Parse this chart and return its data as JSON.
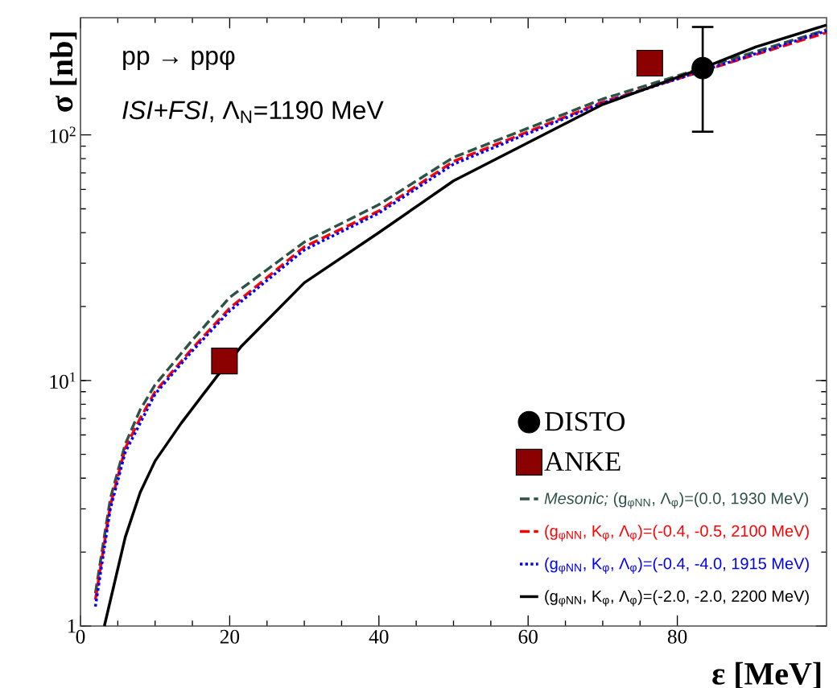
{
  "chart_data": {
    "type": "line",
    "xlabel": "ε [MeV]",
    "ylabel": "σ [nb]",
    "annotations": [
      "pp → ppφ",
      "*ISI+FSI*, Λ$_{N}$=1190 MeV"
    ],
    "xlim": [
      0,
      100
    ],
    "xticks": [
      0,
      20,
      40,
      60,
      80
    ],
    "ylim": [
      1,
      300
    ],
    "log": "y",
    "yticks": [
      1,
      {
        "value": 10,
        "label": "10$^{1}$"
      },
      {
        "value": 100,
        "label": "10$^{2}$"
      }
    ],
    "grid": false,
    "legend": "bottom right",
    "marker": "none",
    "series": [
      {
        "name": "DISTO",
        "type": "scatter",
        "marker": "circle",
        "color": "#000000",
        "x": [
          83.4
        ],
        "values": [
          187
        ],
        "errors": [
          [
            103,
            275
          ]
        ]
      },
      {
        "name": "ANKE",
        "type": "scatter",
        "marker": "square",
        "color": "#8b0000",
        "x": [
          19.3,
          76.3
        ],
        "values": [
          12.0,
          196
        ]
      },
      {
        "name": "*Mesonic;* (g$_{φNN}$, Λ$_{φ}$)=(0.0, 1930 MeV)",
        "line_style": "dashed",
        "color": "#2e5248",
        "x": [
          2,
          4,
          6,
          8,
          10,
          15,
          20,
          30,
          40,
          50,
          70,
          100
        ],
        "values": [
          1.36,
          3.3,
          5.5,
          7.6,
          9.6,
          14.6,
          21.8,
          36.6,
          52,
          81,
          140,
          268
        ]
      },
      {
        "name": "(g$_{φNN}$, K$_{φ}$, Λ$_{φ}$)=(-0.4, -0.5, 2100 MeV)",
        "line_style": "dashed",
        "color": "#ff0000",
        "x": [
          2,
          4,
          6,
          8,
          10,
          15,
          20,
          30,
          40,
          50,
          70,
          100
        ],
        "values": [
          1.28,
          3.1,
          5.3,
          7.0,
          9.0,
          13.5,
          19.7,
          35,
          49,
          78,
          136,
          261
        ]
      },
      {
        "name": "(g$_{φNN}$, K$_{φ}$, Λ$_{φ}$)=(-0.4, -4.0, 1915 MeV)",
        "line_style": "dotted",
        "color": "#0000ff",
        "x": [
          2,
          4,
          6,
          8,
          10,
          15,
          20,
          30,
          40,
          50,
          70,
          100
        ],
        "values": [
          1.2,
          3.0,
          5.1,
          6.7,
          8.8,
          13.2,
          19.2,
          34,
          48,
          76,
          135,
          265
        ]
      },
      {
        "name": "(g$_{φNN}$, K$_{φ}$, Λ$_{φ}$)=(-2.0, -2.0, 2200 MeV)",
        "line_style": "solid",
        "color": "#000000",
        "x": [
          3.2,
          6,
          8,
          10,
          13.5,
          18.3,
          21.5,
          30,
          40,
          50,
          70,
          83.4,
          90.5,
          100
        ],
        "values": [
          1.0,
          2.3,
          3.5,
          4.7,
          6.7,
          10.4,
          13.7,
          25,
          40,
          65,
          133,
          187,
          228,
          280
        ]
      }
    ]
  }
}
